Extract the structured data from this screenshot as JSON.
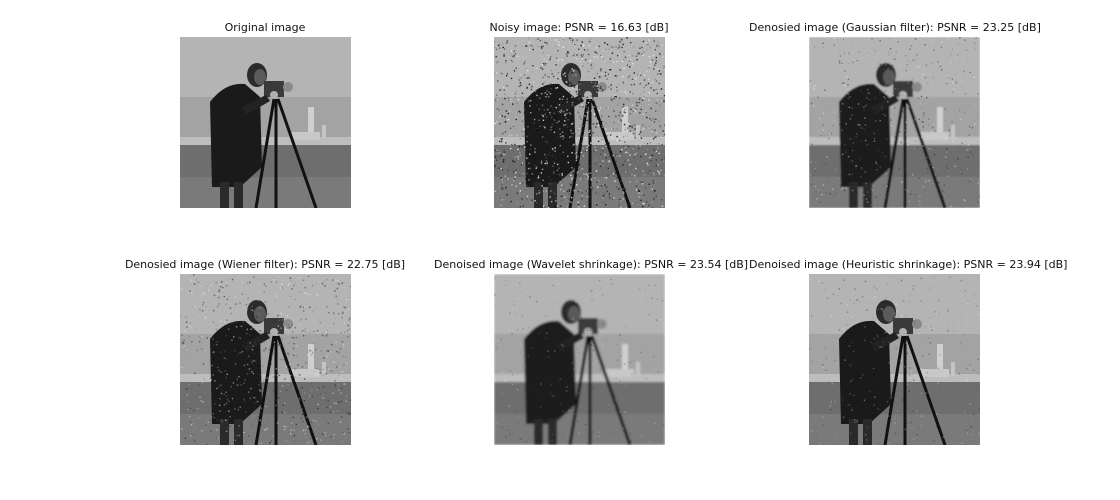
{
  "panels": [
    {
      "title": "Original image",
      "noise": "none"
    },
    {
      "title": "Noisy image: PSNR = 16.63 [dB]",
      "noise": "heavy"
    },
    {
      "title": "Denosied image (Gaussian filter): PSNR = 23.25 [dB]",
      "noise": "blur"
    },
    {
      "title": "Denosied image (Wiener filter): PSNR = 22.75 [dB]",
      "noise": "medium"
    },
    {
      "title": "Denoised image (Wavelet shrinkage): PSNR = 23.54 [dB]",
      "noise": "smooth"
    },
    {
      "title": "Denoised image (Heuristic shrinkage): PSNR = 23.94 [dB]",
      "noise": "light"
    }
  ],
  "colors": {
    "background": "#ffffff",
    "title_text": "#111111"
  }
}
